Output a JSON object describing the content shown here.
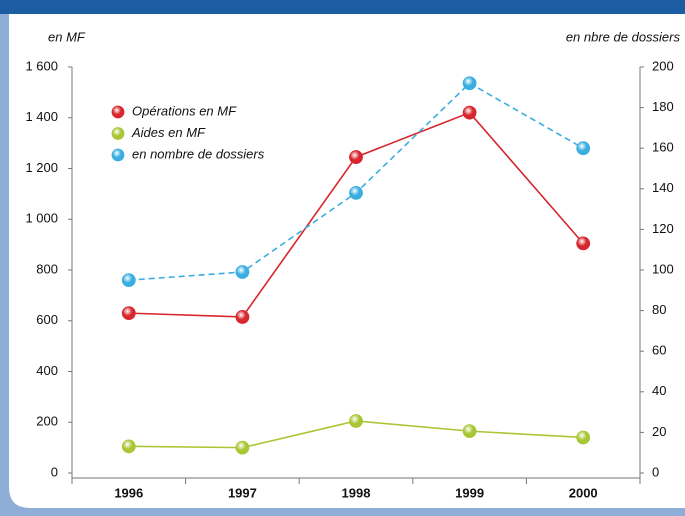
{
  "chart_data": {
    "type": "line",
    "ylabel": "en MF",
    "y2label": "en nbre de dossiers",
    "categories": [
      "1996",
      "1997",
      "1998",
      "1999",
      "2000"
    ],
    "series": [
      {
        "name": "Opérations en MF",
        "color": "#d7262c",
        "values": [
          630,
          615,
          1245,
          1420,
          905
        ]
      },
      {
        "name": "Aides en MF",
        "color": "#a9c735",
        "values": [
          105,
          100,
          205,
          165,
          140
        ]
      },
      {
        "name": "en nombre de dossiers",
        "color": "#3aaee0",
        "dash": true,
        "axis": "y2",
        "values": [
          95,
          99,
          138,
          192,
          160
        ]
      }
    ],
    "ylim": [
      0,
      1600
    ],
    "yticks": [
      0,
      200,
      400,
      600,
      800,
      {
        "value": 1000,
        "label": "1 000"
      },
      {
        "value": 1200,
        "label": "1 200"
      },
      {
        "value": 1400,
        "label": "1 400"
      },
      {
        "value": 1600,
        "label": "1 600"
      }
    ],
    "y2lim": [
      0,
      200
    ],
    "y2ticks": [
      0,
      20,
      40,
      60,
      80,
      100,
      120,
      140,
      160,
      180,
      200
    ],
    "legend": "upper left"
  }
}
